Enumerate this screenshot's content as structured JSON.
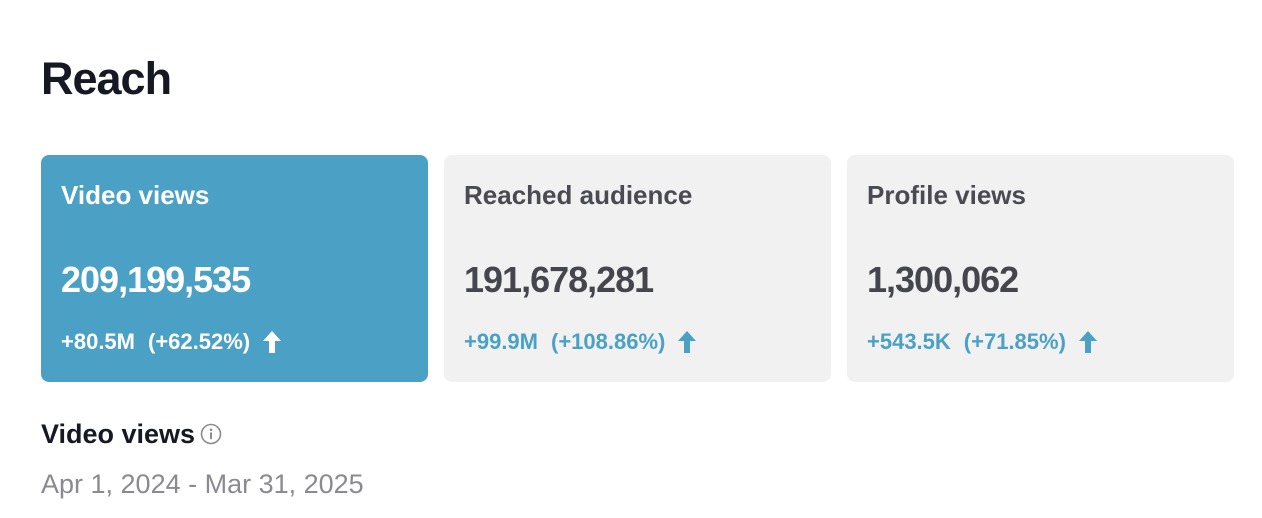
{
  "section": {
    "title": "Reach"
  },
  "cards": [
    {
      "label": "Video views",
      "value": "209,199,535",
      "change": "+80.5M",
      "change_pct": "(+62.52%)",
      "trend_icon": "arrow-up-icon",
      "selected": true
    },
    {
      "label": "Reached audience",
      "value": "191,678,281",
      "change": "+99.9M",
      "change_pct": "(+108.86%)",
      "trend_icon": "arrow-up-icon",
      "selected": false
    },
    {
      "label": "Profile views",
      "value": "1,300,062",
      "change": "+543.5K",
      "change_pct": "(+71.85%)",
      "trend_icon": "arrow-up-icon",
      "selected": false
    }
  ],
  "detail": {
    "title": "Video views",
    "info_icon": "info-icon",
    "date_range": "Apr 1, 2024 - Mar 31, 2025"
  },
  "colors": {
    "accent": "#4aa1c5",
    "card_bg": "#f1f1f2",
    "heading": "#161823",
    "muted": "#8a8b91"
  }
}
